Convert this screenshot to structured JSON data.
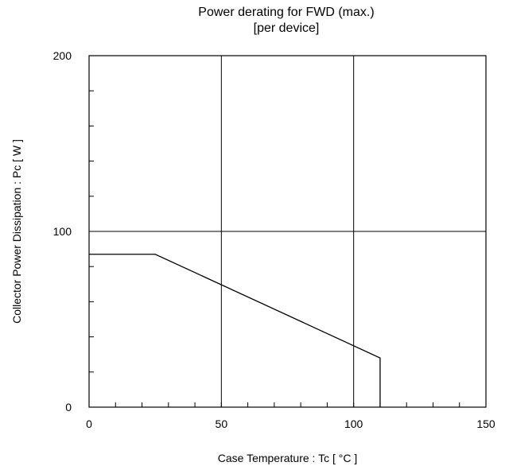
{
  "chart_data": {
    "type": "line",
    "title": "Power derating for FWD (max.)",
    "subtitle": "[per device]",
    "xlabel": "Case Temperature  :  Tc [ °C ]",
    "ylabel": "Collector Power Dissipation : Pc [ W ]",
    "xlim": [
      0,
      150
    ],
    "ylim": [
      0,
      200
    ],
    "x_ticks": [
      0,
      50,
      100,
      150
    ],
    "y_ticks": [
      0,
      100,
      200
    ],
    "x_tick_labels": [
      "0",
      "50",
      "100",
      "150"
    ],
    "y_tick_labels": [
      "0",
      "100",
      "200"
    ],
    "x_minor_step": 10,
    "y_minor_step": 20,
    "grid": true,
    "series": [
      {
        "x": [
          0,
          25,
          110,
          110
        ],
        "y": [
          87,
          87,
          28,
          0
        ],
        "color": "#000000"
      }
    ]
  }
}
